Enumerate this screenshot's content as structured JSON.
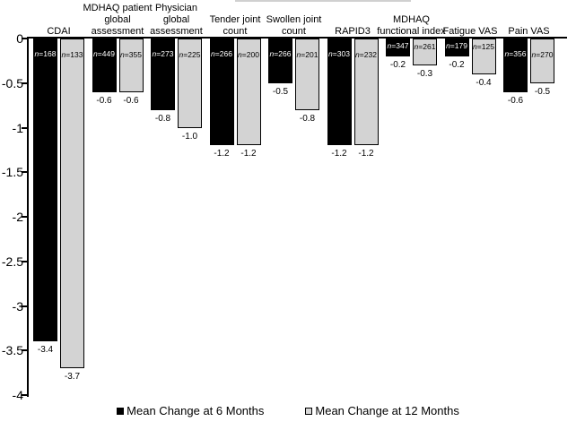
{
  "figure": {
    "y_axis": {
      "tick_labels": [
        "0",
        "-0.5",
        "-1",
        "-1.5",
        "-2",
        "-2.5",
        "-3",
        "-3.5",
        "-4"
      ]
    },
    "legend": {
      "items": [
        {
          "label": "Mean Change at 6 Months",
          "swatch_color": "#000000"
        },
        {
          "label": "Mean Change at 12 Months",
          "swatch_color": "#d9d9d9"
        }
      ]
    }
  },
  "chart_data": {
    "type": "bar",
    "title": "",
    "xlabel": "",
    "ylabel": "",
    "ylim": [
      -4,
      0
    ],
    "grid": false,
    "legend_position": "bottom",
    "categories": [
      "CDAI",
      "MDHAQ patient\nglobal\nassessment",
      "Physician\nglobal\nassessment",
      "Tender joint\ncount",
      "Swollen joint\ncount",
      "RAPID3",
      "MDHAQ\nfunctional index",
      "Fatigue VAS",
      "Pain VAS"
    ],
    "series": [
      {
        "name": "Mean Change at 6 Months",
        "color": "#000000",
        "label_color": "#ffffff",
        "values": [
          -3.4,
          -0.6,
          -0.8,
          -1.2,
          -0.5,
          -1.2,
          -0.2,
          -0.2,
          -0.6
        ],
        "value_labels": [
          "-3.4",
          "-0.6",
          "-0.8",
          "-1.2",
          "-0.5",
          "-1.2",
          "-0.2",
          "-0.2",
          "-0.6"
        ],
        "n_labels": [
          "n=168",
          "n=449",
          "n=273",
          "n=266",
          "n=266",
          "n=303",
          "n=347",
          "n=179",
          "n=356"
        ]
      },
      {
        "name": "Mean Change at 12 Months",
        "color": "#d3d3d3",
        "label_color": "#000000",
        "values": [
          -3.7,
          -0.6,
          -1.0,
          -1.2,
          -0.8,
          -1.2,
          -0.3,
          -0.4,
          -0.5
        ],
        "value_labels": [
          "-3.7",
          "-0.6",
          "-1.0",
          "-1.2",
          "-0.8",
          "-1.2",
          "-0.3",
          "-0.4",
          "-0.5"
        ],
        "n_labels": [
          "n=133",
          "n=355",
          "n=225",
          "n=200",
          "n=201",
          "n=232",
          "n=261",
          "n=125",
          "n=270"
        ]
      }
    ]
  }
}
